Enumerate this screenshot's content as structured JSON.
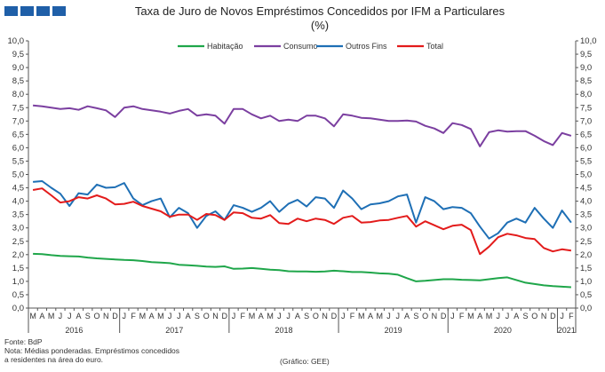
{
  "header": {
    "title_line1": "Taxa de Juro de Novos Empréstimos Concedidos por IFM a Particulares",
    "title_line2": "(%)"
  },
  "footer": {
    "source": "Fonte: BdP",
    "note_line1": "Nota: Médias ponderadas. Empréstimos concedidos",
    "note_line2": "a residentes na área do euro.",
    "credit": "(Gráfico: GEE)"
  },
  "chart_data": {
    "type": "line",
    "title": "Taxa de Juro de Novos Empréstimos Concedidos por IFM a Particulares",
    "subtitle": "(%)",
    "ylim": [
      0,
      10
    ],
    "yticks": [
      "0,0",
      "0,5",
      "1,0",
      "1,5",
      "2,0",
      "2,5",
      "3,0",
      "3,5",
      "4,0",
      "4,5",
      "5,0",
      "5,5",
      "6,0",
      "6,5",
      "7,0",
      "7,5",
      "8,0",
      "8,5",
      "9,0",
      "9,5",
      "10,0"
    ],
    "grid": false,
    "legend_position": "top",
    "month_labels": [
      "M",
      "A",
      "M",
      "J",
      "J",
      "A",
      "S",
      "O",
      "N",
      "D",
      "J",
      "F",
      "M",
      "A",
      "M",
      "J",
      "J",
      "A",
      "S",
      "O",
      "N",
      "D",
      "J",
      "F",
      "M",
      "A",
      "M",
      "J",
      "J",
      "A",
      "S",
      "O",
      "N",
      "D",
      "J",
      "F",
      "M",
      "A",
      "M",
      "J",
      "J",
      "A",
      "S",
      "O",
      "N",
      "D",
      "J",
      "F",
      "M",
      "A",
      "M",
      "J",
      "J",
      "A",
      "S",
      "O",
      "N",
      "D",
      "J",
      "F"
    ],
    "years": [
      {
        "label": "2016",
        "start": 0,
        "end": 9
      },
      {
        "label": "2017",
        "start": 10,
        "end": 21
      },
      {
        "label": "2018",
        "start": 22,
        "end": 33
      },
      {
        "label": "2019",
        "start": 34,
        "end": 45
      },
      {
        "label": "2020",
        "start": 46,
        "end": 57
      },
      {
        "label": "2021",
        "start": 58,
        "end": 59
      }
    ],
    "series": [
      {
        "name": "Habitação",
        "color": "#1fa64a",
        "values": [
          2.03,
          2.02,
          1.98,
          1.95,
          1.94,
          1.93,
          1.89,
          1.86,
          1.84,
          1.82,
          1.8,
          1.79,
          1.76,
          1.72,
          1.7,
          1.68,
          1.62,
          1.6,
          1.58,
          1.55,
          1.54,
          1.56,
          1.47,
          1.48,
          1.5,
          1.47,
          1.44,
          1.42,
          1.38,
          1.37,
          1.37,
          1.36,
          1.37,
          1.4,
          1.38,
          1.35,
          1.35,
          1.33,
          1.3,
          1.29,
          1.25,
          1.12,
          1.0,
          1.02,
          1.05,
          1.08,
          1.08,
          1.06,
          1.05,
          1.04,
          1.08,
          1.12,
          1.15,
          1.05,
          0.95,
          0.9,
          0.85,
          0.82,
          0.8,
          0.78
        ]
      },
      {
        "name": "Consumo",
        "color": "#7b3fa0",
        "values": [
          7.58,
          7.55,
          7.5,
          7.45,
          7.48,
          7.42,
          7.55,
          7.48,
          7.4,
          7.15,
          7.5,
          7.55,
          7.45,
          7.4,
          7.35,
          7.28,
          7.38,
          7.45,
          7.2,
          7.25,
          7.2,
          6.9,
          7.45,
          7.45,
          7.25,
          7.1,
          7.2,
          7.0,
          7.05,
          7.0,
          7.2,
          7.2,
          7.1,
          6.8,
          7.25,
          7.2,
          7.12,
          7.1,
          7.05,
          7.0,
          7.0,
          7.02,
          6.98,
          6.82,
          6.72,
          6.55,
          6.92,
          6.85,
          6.7,
          6.05,
          6.58,
          6.65,
          6.6,
          6.62,
          6.62,
          6.45,
          6.25,
          6.1,
          6.55,
          6.45
        ]
      },
      {
        "name": "Outros Fins",
        "color": "#1e6fb5",
        "values": [
          4.72,
          4.75,
          4.5,
          4.28,
          3.82,
          4.3,
          4.25,
          4.62,
          4.5,
          4.52,
          4.68,
          4.1,
          3.85,
          4.0,
          4.1,
          3.4,
          3.75,
          3.55,
          3.0,
          3.45,
          3.62,
          3.3,
          3.85,
          3.75,
          3.6,
          3.75,
          4.0,
          3.6,
          3.9,
          4.05,
          3.8,
          4.15,
          4.1,
          3.75,
          4.4,
          4.1,
          3.7,
          3.88,
          3.92,
          4.0,
          4.18,
          4.25,
          3.2,
          4.15,
          4.0,
          3.7,
          3.78,
          3.75,
          3.55,
          3.05,
          2.6,
          2.8,
          3.2,
          3.35,
          3.2,
          3.75,
          3.35,
          3.0,
          3.65,
          3.2
        ]
      },
      {
        "name": "Total",
        "color": "#e31b1b",
        "values": [
          4.42,
          4.48,
          4.22,
          3.95,
          4.0,
          4.15,
          4.1,
          4.22,
          4.1,
          3.88,
          3.9,
          3.98,
          3.82,
          3.72,
          3.62,
          3.42,
          3.5,
          3.5,
          3.3,
          3.52,
          3.48,
          3.3,
          3.58,
          3.55,
          3.38,
          3.35,
          3.48,
          3.18,
          3.15,
          3.35,
          3.25,
          3.35,
          3.3,
          3.15,
          3.38,
          3.45,
          3.2,
          3.22,
          3.28,
          3.3,
          3.38,
          3.45,
          3.05,
          3.25,
          3.1,
          2.95,
          3.08,
          3.12,
          2.92,
          2.02,
          2.3,
          2.65,
          2.78,
          2.72,
          2.62,
          2.58,
          2.25,
          2.12,
          2.2,
          2.15
        ]
      }
    ]
  }
}
